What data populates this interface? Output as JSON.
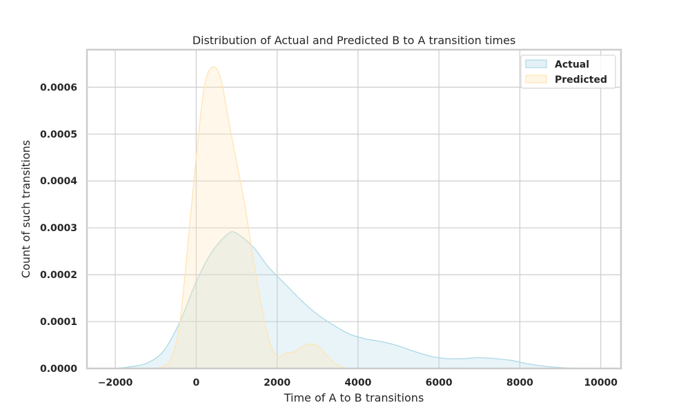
{
  "chart_data": {
    "type": "area",
    "title": "Distribution of Actual and Predicted B to A transition times",
    "xlabel": "Time of A to B transitions",
    "ylabel": "Count of such transitions",
    "xlim": [
      -2700,
      10500
    ],
    "ylim": [
      0,
      0.00068
    ],
    "x_ticks": [
      -2000,
      0,
      2000,
      4000,
      6000,
      8000,
      10000
    ],
    "x_tick_labels": [
      "−2000",
      "0",
      "2000",
      "4000",
      "6000",
      "8000",
      "10000"
    ],
    "y_ticks": [
      0,
      0.0001,
      0.0002,
      0.0003,
      0.0004,
      0.0005,
      0.0006
    ],
    "y_tick_labels": [
      "0.0000",
      "0.0001",
      "0.0002",
      "0.0003",
      "0.0004",
      "0.0005",
      "0.0006"
    ],
    "grid": true,
    "legend_position": "top-right",
    "series": [
      {
        "name": "Actual",
        "fill": "#add8e6",
        "fill_opacity": 0.28,
        "stroke": "#add8e6",
        "points": [
          [
            -2000,
            0
          ],
          [
            -1600,
            4e-06
          ],
          [
            -1200,
            1.2e-05
          ],
          [
            -800,
            3.8e-05
          ],
          [
            -400,
            0.0001
          ],
          [
            0,
            0.000185
          ],
          [
            400,
            0.00025
          ],
          [
            800,
            0.000288
          ],
          [
            1000,
            0.000288
          ],
          [
            1400,
            0.00026
          ],
          [
            1800,
            0.000215
          ],
          [
            2200,
            0.00018
          ],
          [
            2600,
            0.000145
          ],
          [
            3000,
            0.000115
          ],
          [
            3400,
            9.2e-05
          ],
          [
            3800,
            7.3e-05
          ],
          [
            4200,
            6.3e-05
          ],
          [
            4600,
            5.7e-05
          ],
          [
            5000,
            4.8e-05
          ],
          [
            5400,
            3.6e-05
          ],
          [
            5800,
            2.6e-05
          ],
          [
            6200,
            2.1e-05
          ],
          [
            6600,
            2.1e-05
          ],
          [
            7000,
            2.3e-05
          ],
          [
            7400,
            2.1e-05
          ],
          [
            7800,
            1.7e-05
          ],
          [
            8200,
            1e-05
          ],
          [
            8600,
            5e-06
          ],
          [
            9000,
            2e-06
          ],
          [
            9400,
            0
          ]
        ]
      },
      {
        "name": "Predicted",
        "fill": "#ffe4b5",
        "fill_opacity": 0.3,
        "stroke": "#ffe4b5",
        "points": [
          [
            -1000,
            0
          ],
          [
            -800,
            5e-06
          ],
          [
            -600,
            2.5e-05
          ],
          [
            -400,
            0.0001
          ],
          [
            -200,
            0.00027
          ],
          [
            0,
            0.00045
          ],
          [
            200,
            0.0006
          ],
          [
            400,
            0.000643
          ],
          [
            600,
            0.00062
          ],
          [
            800,
            0.00053
          ],
          [
            1000,
            0.00044
          ],
          [
            1200,
            0.00035
          ],
          [
            1400,
            0.00024
          ],
          [
            1600,
            0.00014
          ],
          [
            1800,
            6e-05
          ],
          [
            2000,
            2.5e-05
          ],
          [
            2200,
            3.2e-05
          ],
          [
            2400,
            3.5e-05
          ],
          [
            2600,
            4.5e-05
          ],
          [
            2800,
            5.2e-05
          ],
          [
            3000,
            4.8e-05
          ],
          [
            3200,
            3e-05
          ],
          [
            3400,
            1.3e-05
          ],
          [
            3600,
            3e-06
          ],
          [
            3800,
            0
          ]
        ]
      }
    ]
  }
}
